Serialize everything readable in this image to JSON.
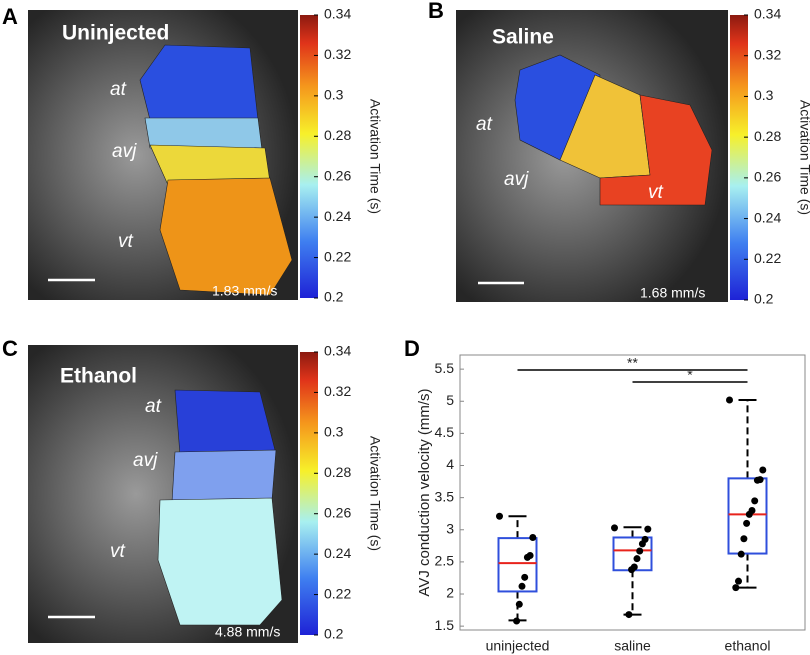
{
  "chart_data": [
    {
      "type": "heatmap",
      "panel_label": "A",
      "title": "Uninjected",
      "annotations": [
        "at",
        "avj",
        "vt"
      ],
      "velocity_label": "1.83 mm/s",
      "colorbar_label": "Activation Time (s)",
      "clim": [
        0.2,
        0.34
      ],
      "cticks": [
        0.2,
        0.22,
        0.24,
        0.26,
        0.28,
        0.3,
        0.32,
        0.34
      ]
    },
    {
      "type": "heatmap",
      "panel_label": "B",
      "title": "Saline",
      "annotations": [
        "at",
        "avj",
        "vt"
      ],
      "velocity_label": "1.68 mm/s",
      "colorbar_label": "Activation Time (s)",
      "clim": [
        0.2,
        0.34
      ],
      "cticks": [
        0.2,
        0.22,
        0.24,
        0.26,
        0.28,
        0.3,
        0.32,
        0.34
      ]
    },
    {
      "type": "heatmap",
      "panel_label": "C",
      "title": "Ethanol",
      "annotations": [
        "at",
        "avj",
        "vt"
      ],
      "velocity_label": "4.88 mm/s",
      "colorbar_label": "Activation Time (s)",
      "clim": [
        0.2,
        0.34
      ],
      "cticks": [
        0.2,
        0.22,
        0.24,
        0.26,
        0.28,
        0.3,
        0.32,
        0.34
      ]
    },
    {
      "type": "box",
      "panel_label": "D",
      "y_label": "AVJ conduction velocity (mm/s)",
      "categories": [
        "uninjected",
        "saline",
        "ethanol"
      ],
      "box_color": "#2f4fdc",
      "median_color": "#e8231b",
      "boxes": [
        {
          "min": 1.59,
          "q1": 2.04,
          "median": 2.48,
          "q3": 2.87,
          "max": 3.21,
          "points": [
            3.21,
            2.88,
            2.6,
            2.57,
            2.26,
            2.12,
            1.84,
            1.58
          ]
        },
        {
          "min": 1.68,
          "q1": 2.37,
          "median": 2.68,
          "q3": 2.88,
          "max": 3.04,
          "points": [
            3.03,
            3.01,
            2.85,
            2.78,
            2.67,
            2.55,
            2.42,
            2.38,
            1.68
          ]
        },
        {
          "min": 2.1,
          "q1": 2.63,
          "median": 3.24,
          "q3": 3.8,
          "max": 5.02,
          "points": [
            5.02,
            3.93,
            3.78,
            3.77,
            3.45,
            3.3,
            3.24,
            3.1,
            2.86,
            2.62,
            2.2,
            2.1
          ]
        }
      ],
      "comparisons": [
        {
          "label": "**",
          "from": "uninjected",
          "to": "ethanol"
        },
        {
          "label": "*",
          "from": "saline",
          "to": "ethanol"
        }
      ],
      "ylim": [
        1.44,
        5.72
      ],
      "yticks": [
        1.5,
        2,
        2.5,
        3,
        3.5,
        4,
        4.5,
        5,
        5.5
      ]
    }
  ]
}
